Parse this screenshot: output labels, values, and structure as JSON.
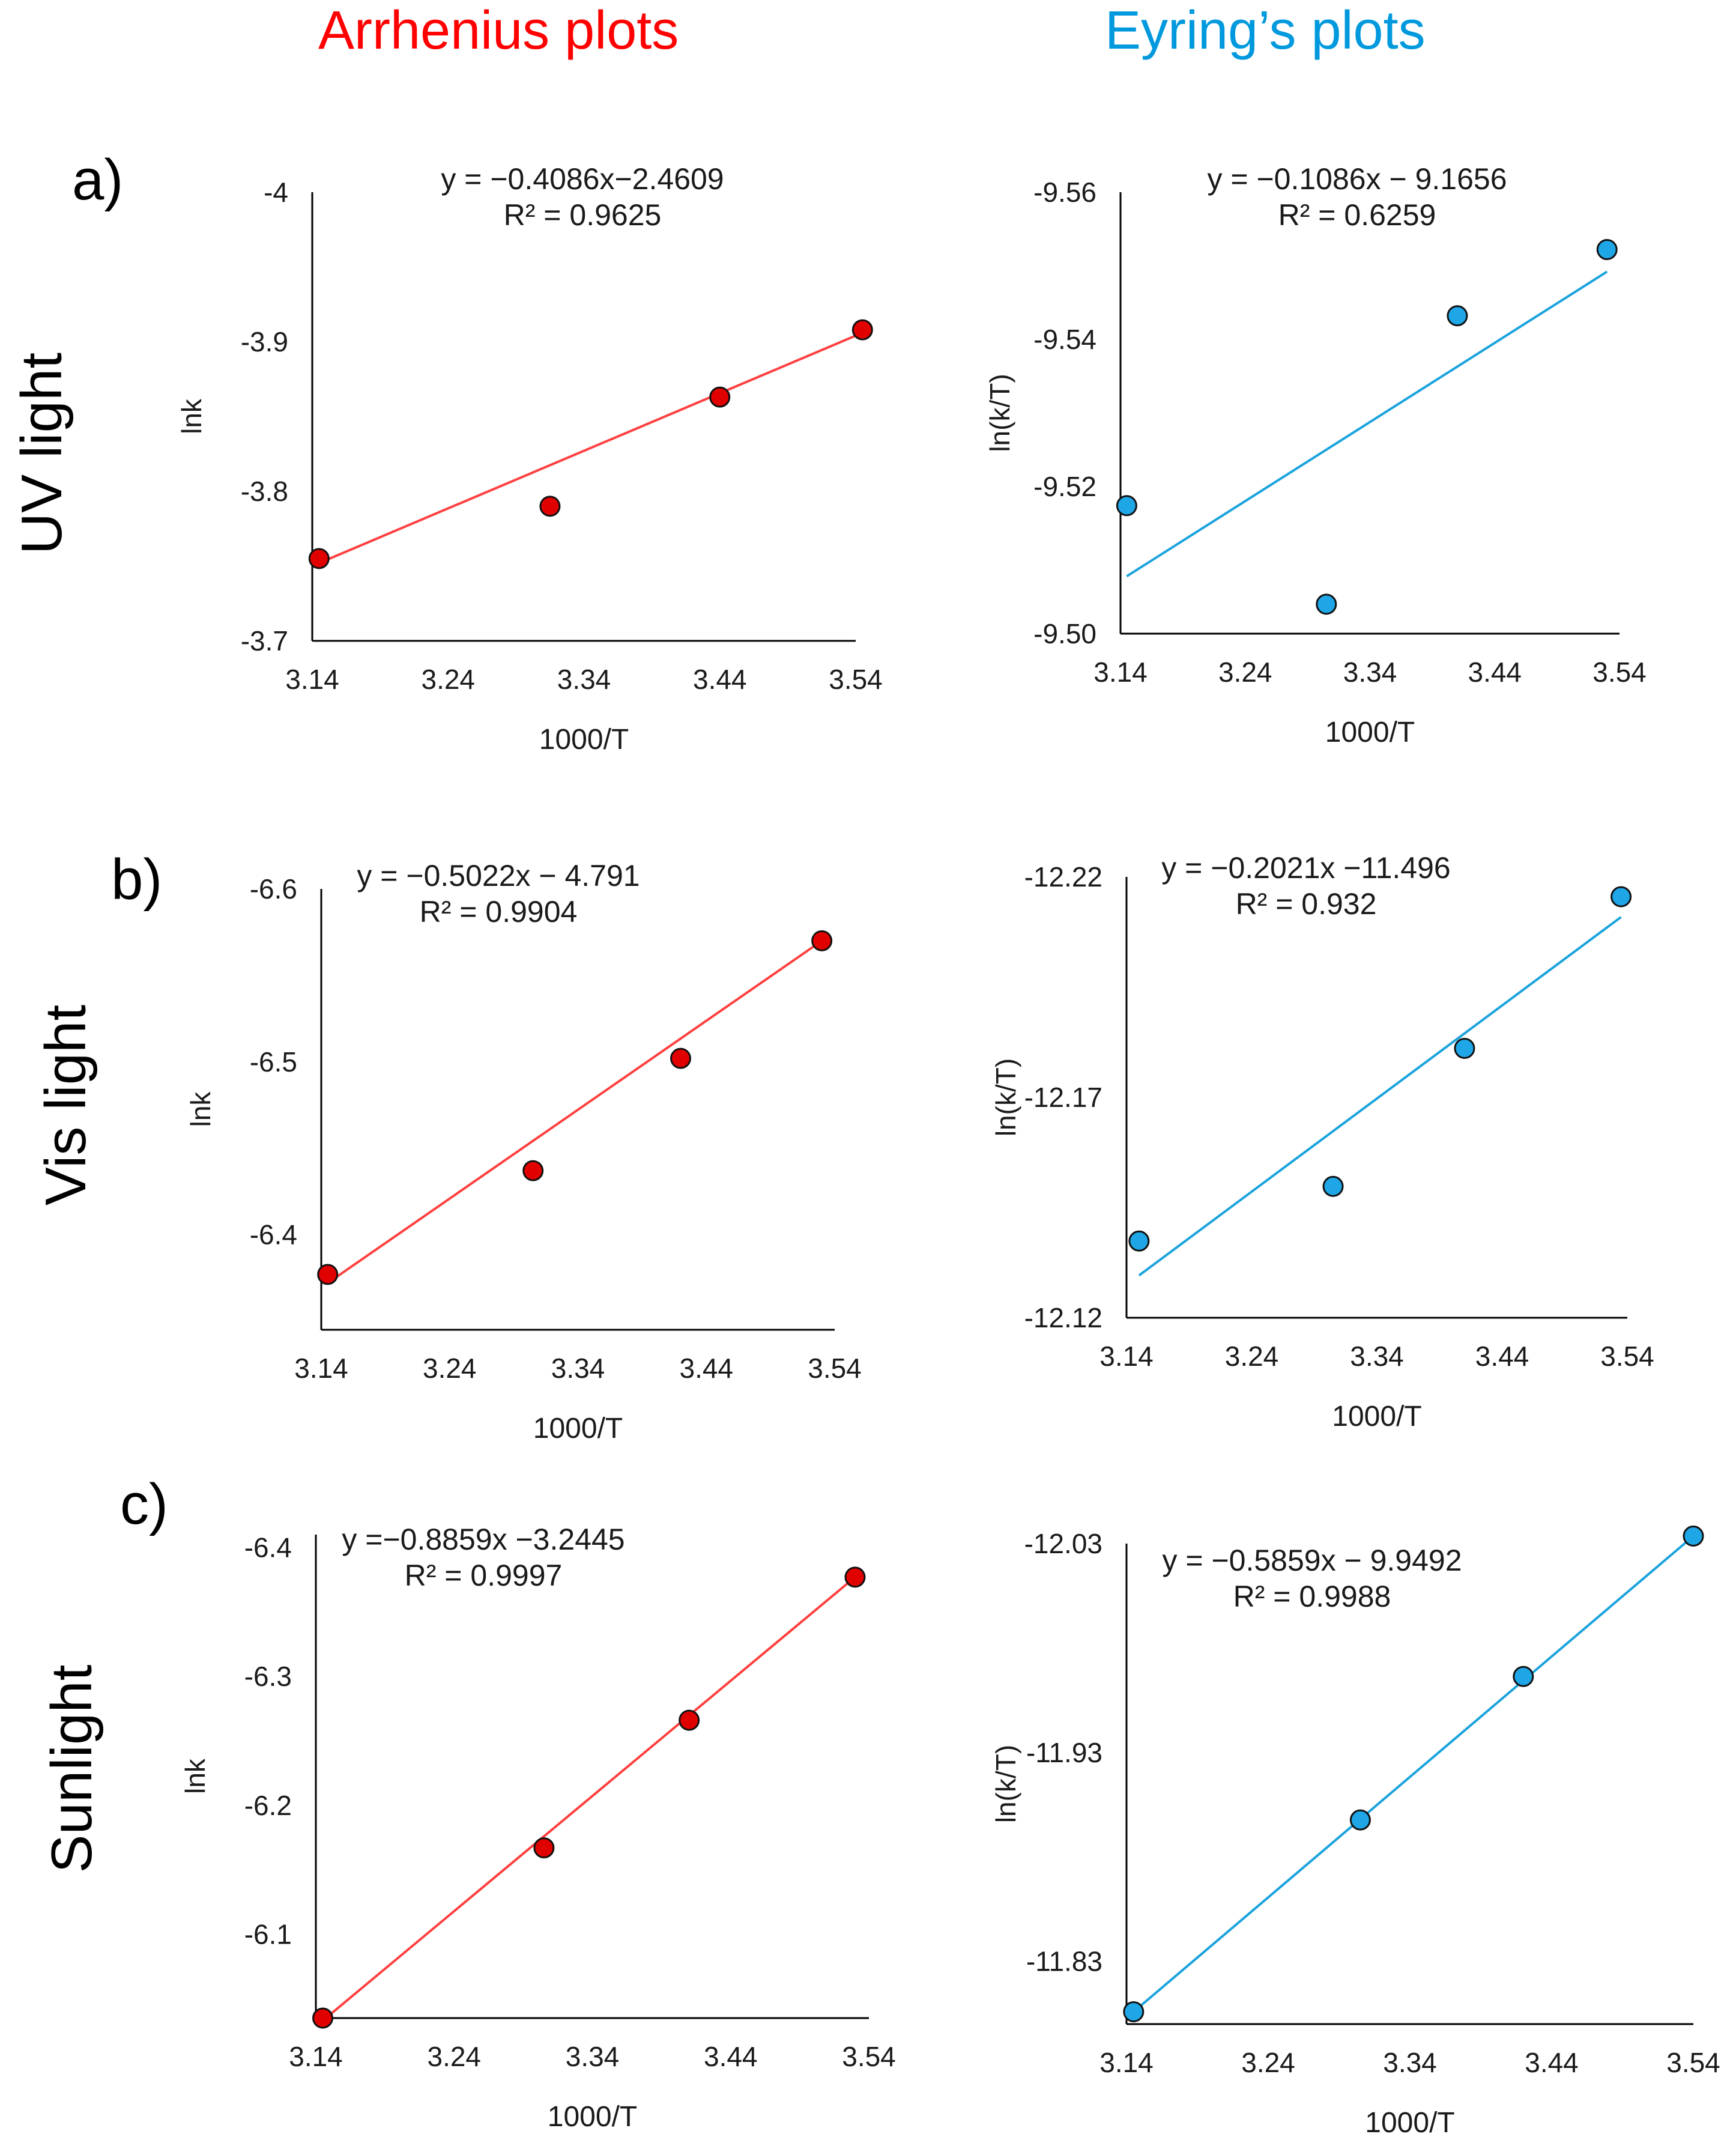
{
  "headings": {
    "arrhenius": "Arrhenius plots",
    "eyring": "Eyring’s plots",
    "arrhenius_color": "#ff0000",
    "eyring_color": "#0099dd"
  },
  "rows": [
    {
      "panel": "a)",
      "label": "UV light"
    },
    {
      "panel": "b)",
      "label": "Vis light"
    },
    {
      "panel": "c)",
      "label": "Sunlight"
    }
  ],
  "colors": {
    "arrhenius_line": "#ff4040",
    "arrhenius_marker": "#e00000",
    "eyring_line": "#1aa3dd",
    "eyring_marker": "#1ea6e6",
    "axis": "#000000"
  },
  "chart_data": [
    {
      "id": "uv-arrhenius",
      "type": "scatter",
      "family": "arrhenius",
      "xlabel": "1000/T",
      "ylabel": "lnk",
      "x_ticks": [
        "3.14",
        "3.24",
        "3.34",
        "3.44",
        "3.54"
      ],
      "y_ticks": [
        "-3.7",
        "-3.8",
        "-3.9",
        "-4"
      ],
      "xlim": [
        3.14,
        3.54
      ],
      "ylim": [
        -3.7,
        -4.0
      ],
      "x": [
        3.145,
        3.315,
        3.44,
        3.545
      ],
      "y": [
        -3.755,
        -3.79,
        -3.863,
        -3.908
      ],
      "trendline": {
        "x": [
          3.145,
          3.545
        ],
        "y": [
          -3.752,
          -3.906
        ]
      },
      "equation": "y = −0.4086x−2.4609",
      "r2": "R² = 0.9625"
    },
    {
      "id": "uv-eyring",
      "type": "scatter",
      "family": "eyring",
      "xlabel": "1000/T",
      "ylabel": "ln(k/T)",
      "x_ticks": [
        "3.14",
        "3.24",
        "3.34",
        "3.44",
        "3.54"
      ],
      "y_ticks": [
        "-9.50",
        "-9.52",
        "-9.54",
        "-9.56"
      ],
      "xlim": [
        3.14,
        3.54
      ],
      "ylim": [
        -9.5,
        -9.56
      ],
      "x": [
        3.145,
        3.305,
        3.41,
        3.53
      ],
      "y": [
        -9.5174,
        -9.504,
        -9.5432,
        -9.5522
      ],
      "trendline": {
        "x": [
          3.145,
          3.53
        ],
        "y": [
          -9.5078,
          -9.5492
        ]
      },
      "equation": "y = −0.1086x − 9.1656",
      "r2": "R² = 0.6259"
    },
    {
      "id": "vis-arrhenius",
      "type": "scatter",
      "family": "arrhenius",
      "xlabel": "1000/T",
      "ylabel": "lnk",
      "x_ticks": [
        "3.14",
        "3.24",
        "3.34",
        "3.44",
        "3.54"
      ],
      "y_ticks": [
        "-6.4",
        "-6.5",
        "-6.6"
      ],
      "xlim": [
        3.14,
        3.54
      ],
      "ylim": [
        -6.345,
        -6.6
      ],
      "x": [
        3.145,
        3.305,
        3.42,
        3.53
      ],
      "y": [
        -6.377,
        -6.437,
        -6.502,
        -6.57
      ],
      "trendline": {
        "x": [
          3.145,
          3.53
        ],
        "y": [
          -6.372,
          -6.57
        ]
      },
      "equation": "y = −0.5022x − 4.791",
      "r2": "R² = 0.9904"
    },
    {
      "id": "vis-eyring",
      "type": "scatter",
      "family": "eyring",
      "xlabel": "1000/T",
      "ylabel": "ln(k/T)",
      "x_ticks": [
        "3.14",
        "3.24",
        "3.34",
        "3.44",
        "3.54"
      ],
      "y_ticks": [
        "-12.12",
        "-12.17",
        "-12.22"
      ],
      "xlim": [
        3.14,
        3.54
      ],
      "ylim": [
        -12.12,
        -12.22
      ],
      "x": [
        3.15,
        3.305,
        3.41,
        3.535
      ],
      "y": [
        -12.1374,
        -12.1498,
        -12.1811,
        -12.2155
      ],
      "trendline": {
        "x": [
          3.15,
          3.535
        ],
        "y": [
          -12.1296,
          -12.2109
        ]
      },
      "equation": "y = −0.2021x −11.496",
      "r2": "R² = 0.932"
    },
    {
      "id": "sun-arrhenius",
      "type": "scatter",
      "family": "arrhenius",
      "xlabel": "1000/T",
      "ylabel": "lnk",
      "x_ticks": [
        "3.14",
        "3.24",
        "3.34",
        "3.44",
        "3.54"
      ],
      "y_ticks": [
        "-6.1",
        "-6.2",
        "-6.3",
        "-6.4"
      ],
      "xlim": [
        3.14,
        3.54
      ],
      "ylim": [
        -6.035,
        -6.41
      ],
      "x": [
        3.145,
        3.305,
        3.41,
        3.53
      ],
      "y": [
        -6.035,
        -6.167,
        -6.266,
        -6.377
      ],
      "trendline": {
        "x": [
          3.145,
          3.53
        ],
        "y": [
          -6.033,
          -6.377
        ]
      },
      "equation": "y =−0.8859x −3.2445",
      "r2": "R² = 0.9997"
    },
    {
      "id": "sun-eyring",
      "type": "scatter",
      "family": "eyring",
      "xlabel": "1000/T",
      "ylabel": "ln(k/T)",
      "x_ticks": [
        "3.14",
        "3.24",
        "3.34",
        "3.44",
        "3.54"
      ],
      "y_ticks": [
        "-11.83",
        "-11.93",
        "-12.03"
      ],
      "xlim": [
        3.14,
        3.54
      ],
      "ylim": [
        -11.8,
        -12.03
      ],
      "x": [
        3.145,
        3.305,
        3.42,
        3.54
      ],
      "y": [
        -11.8059,
        -11.8977,
        -11.9664,
        -12.0336
      ],
      "trendline": {
        "x": [
          3.145,
          3.54
        ],
        "y": [
          -11.8059,
          -12.0336
        ]
      },
      "equation": "y = −0.5859x − 9.9492",
      "r2": "R² = 0.9988"
    }
  ]
}
